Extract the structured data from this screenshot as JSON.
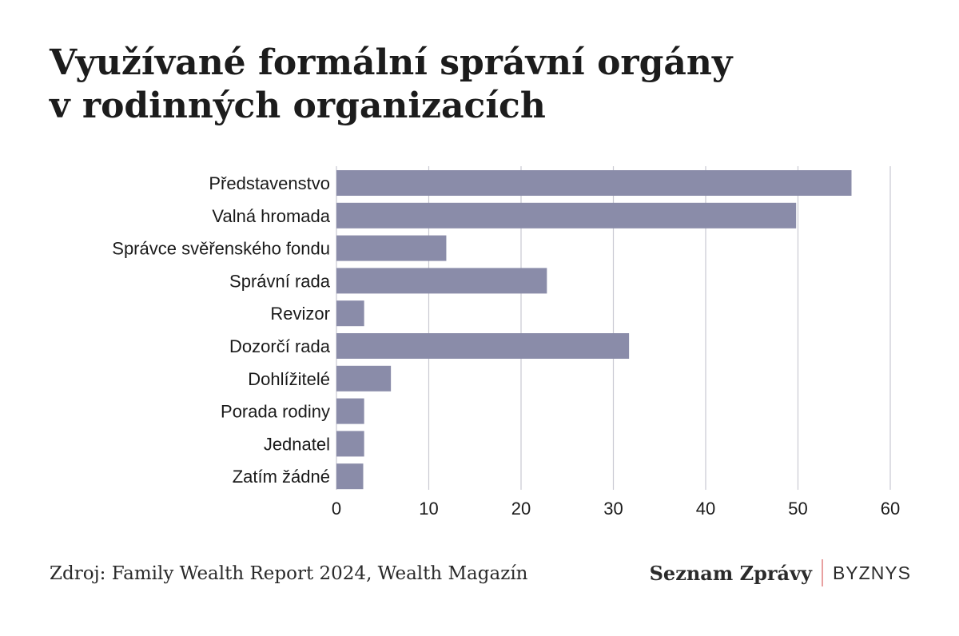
{
  "title_lines": [
    "Využívané formální správní orgány",
    "v rodinných organizacích"
  ],
  "source": "Zdroj: Family Wealth Report 2024, Wealth Magazín",
  "brand": {
    "name": "Seznam Zprávy",
    "section": "BYZNYS"
  },
  "colors": {
    "bar": "#8a8ca9",
    "grid": "#c9c9d3",
    "text": "#1a1a1a",
    "divider": "#e8a0a0"
  },
  "chart_data": {
    "type": "bar",
    "orientation": "horizontal",
    "categories": [
      "Představenstvo",
      "Valná hromada",
      "Správce svěřenského fondu",
      "Správní rada",
      "Revizor",
      "Dozorčí rada",
      "Dohlížitelé",
      "Porada rodiny",
      "Jednatel",
      "Zatím žádné"
    ],
    "values": [
      55.8,
      49.8,
      11.9,
      22.8,
      3.0,
      31.7,
      5.9,
      3.0,
      3.0,
      2.9
    ],
    "xlim": [
      0,
      60
    ],
    "xticks": [
      0,
      10,
      20,
      30,
      40,
      50,
      60
    ],
    "grid": true,
    "legend": "none"
  }
}
